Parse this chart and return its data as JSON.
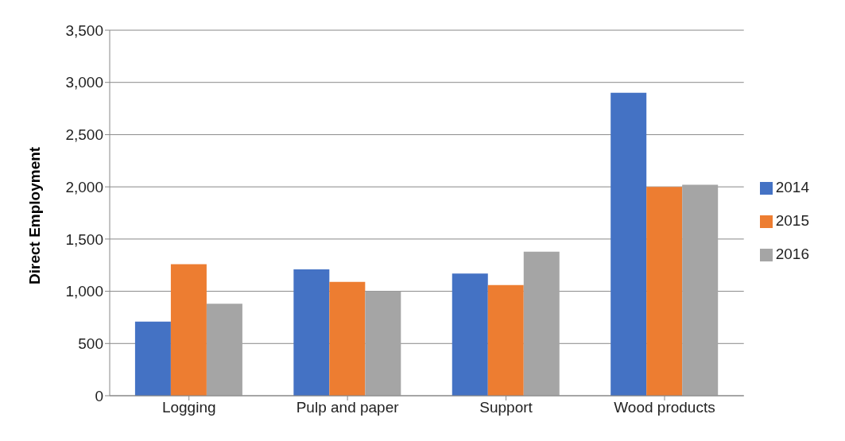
{
  "chart_data": {
    "type": "bar",
    "ylabel": "Direct Employment",
    "categories": [
      "Logging",
      "Pulp and paper",
      "Support",
      "Wood products"
    ],
    "series": [
      {
        "name": "2014",
        "color": "#4472c4",
        "values": [
          710,
          1210,
          1170,
          2900
        ]
      },
      {
        "name": "2015",
        "color": "#ed7d31",
        "values": [
          1260,
          1090,
          1060,
          2000
        ]
      },
      {
        "name": "2016",
        "color": "#a5a5a5",
        "values": [
          880,
          1000,
          1380,
          2020
        ]
      }
    ],
    "ylim": [
      0,
      3500
    ],
    "yticks": [
      0,
      500,
      {
        "value": 1000,
        "label": "1,000"
      },
      {
        "value": 1500,
        "label": "1,500"
      },
      {
        "value": 2000,
        "label": "2,000"
      },
      {
        "value": 2500,
        "label": "2,500"
      },
      {
        "value": 3000,
        "label": "3,000"
      },
      {
        "value": 3500,
        "label": "3,500"
      }
    ],
    "grid": "y",
    "legend": "right"
  }
}
